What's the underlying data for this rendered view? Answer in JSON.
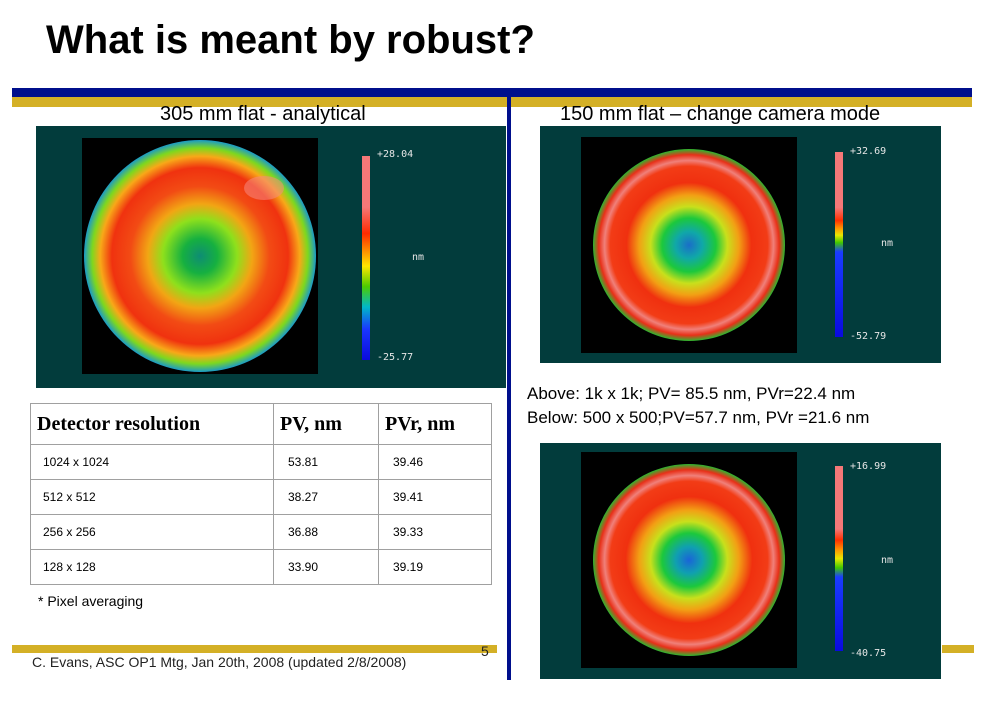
{
  "slide": {
    "title": "What is meant by robust?",
    "page_number": "5",
    "footer": "C. Evans, ASC OP1 Mtg, Jan 20th, 2008 (updated 2/8/2008)"
  },
  "left": {
    "subtitle": "305 mm flat - analytical",
    "plot": {
      "max": "+28.04",
      "unit": "nm",
      "min": "-25.77"
    }
  },
  "right": {
    "subtitle": "150 mm flat – change camera mode",
    "top_plot": {
      "max": "+32.69",
      "unit": "nm",
      "min": "-52.79"
    },
    "bottom_plot": {
      "max": "+16.99",
      "unit": "nm",
      "min": "-40.75"
    },
    "info_line1": "Above: 1k x 1k; PV= 85.5 nm, PVr=22.4 nm",
    "info_line2": "Below: 500 x 500;PV=57.7 nm, PVr =21.6 nm"
  },
  "table": {
    "headers": [
      "Detector resolution",
      "PV, nm",
      "PVr, nm"
    ],
    "rows": [
      [
        "1024 x 1024",
        "53.81",
        "39.46"
      ],
      [
        "512 x 512",
        "38.27",
        "39.41"
      ],
      [
        "256 x 256",
        "36.88",
        "39.33"
      ],
      [
        "128 x 128",
        "33.90",
        "39.19"
      ]
    ],
    "note": "* Pixel averaging"
  },
  "colors": {
    "navy": "#000f8c",
    "gold": "#d4b026",
    "panel": "#023c3c"
  }
}
